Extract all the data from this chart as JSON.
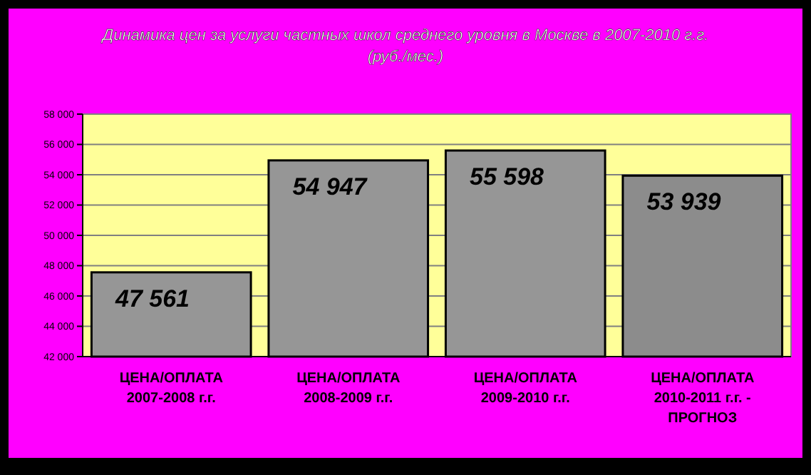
{
  "chart_data": {
    "type": "bar",
    "title": "Динамика цен за услуги частных школ среднего уровня в Москве в 2007-2010 г.г. (руб./мес.)",
    "categories": [
      "ЦЕНА/ОПЛАТА 2007-2008 г.г.",
      "ЦЕНА/ОПЛАТА 2008-2009 г.г.",
      "ЦЕНА/ОПЛАТА 2009-2010 г.г.",
      "ЦЕНА/ОПЛАТА 2010-2011 г.г. - ПРОГНОЗ"
    ],
    "values": [
      47561,
      54947,
      55598,
      53939
    ],
    "colors": [
      "#969696",
      "#969696",
      "#969696",
      "#8c8c8c"
    ],
    "value_labels": [
      "47 561",
      "54 947",
      "55 598",
      "53 939"
    ],
    "ylim": [
      42000,
      58000
    ],
    "yticks": [
      {
        "value": 42000,
        "label": "42 000"
      },
      {
        "value": 44000,
        "label": "44 000"
      },
      {
        "value": 46000,
        "label": "46 000"
      },
      {
        "value": 48000,
        "label": "48 000"
      },
      {
        "value": 50000,
        "label": "50 000"
      },
      {
        "value": 52000,
        "label": "52 000"
      },
      {
        "value": 54000,
        "label": "54 000"
      },
      {
        "value": 56000,
        "label": "56 000"
      },
      {
        "value": 58000,
        "label": "58 000"
      }
    ],
    "grid": "y"
  }
}
